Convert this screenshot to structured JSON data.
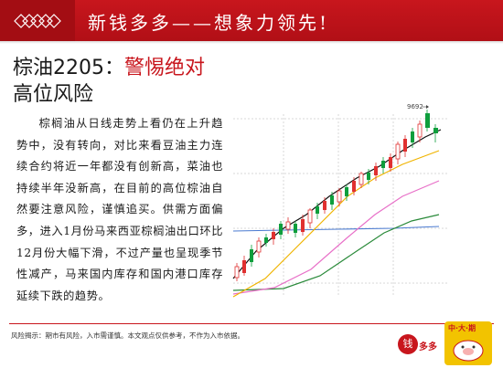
{
  "header": {
    "slogan": "新钱多多——想象力领先!"
  },
  "title": {
    "prefix": "棕油2205：",
    "highlight": "警惕绝对",
    "line2": "高位风险"
  },
  "article": {
    "text": "棕榈油从日线走势上看仍在上升趋势中，没有转向，对比来看豆油主力连续合约将近一年都没有创新高，菜油也持续半年没新高，在目前的高位棕油自然要注意风险，谨慎追买。供需方面偏多，进入1月份马来西亚棕榈油出口环比12月份大幅下滑，不过产量也呈现季节性减产，马来国内库存和国内港口库存延续下跌的趋势。"
  },
  "chart": {
    "high_label": "9692"
  },
  "footer": {
    "disclaimer": "风险揭示：期市有风险，入市需谨慎。本文观点仅供参考，不作为入市依据。",
    "logo_duo_char": "钱",
    "logo_duo_text": "多多",
    "logo_pig_text": "中·大·期"
  },
  "colors": {
    "brand_red": "#c8161d",
    "candle_up": "#e03030",
    "candle_down": "#0e9e3c",
    "ma_black": "#111111",
    "ma_yellow": "#f0b400",
    "ma_pink": "#e870c8",
    "ma_green": "#2a8a3a",
    "ma_blue": "#4a7ad0"
  }
}
